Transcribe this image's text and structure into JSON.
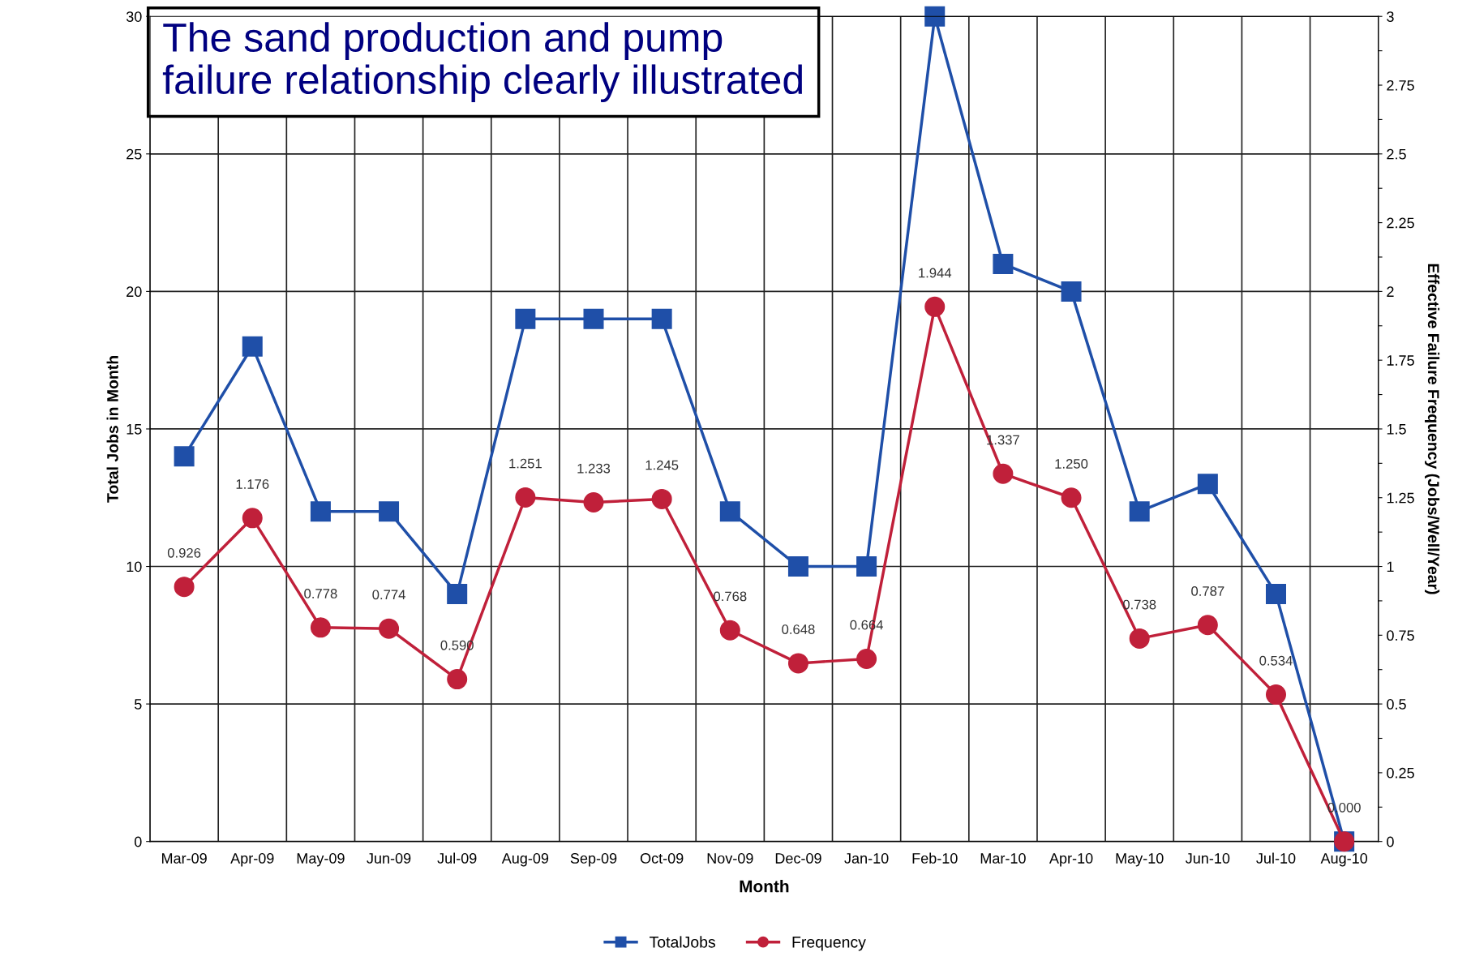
{
  "chart_data": {
    "type": "line",
    "title": "The sand production and pump\nfailure relationship clearly illustrated",
    "xlabel": "Month",
    "ylabel": "Total Jobs in Month",
    "y2label": "Effective Failure Frequency (Jobs/Well/Year)",
    "categories": [
      "Mar-09",
      "Apr-09",
      "May-09",
      "Jun-09",
      "Jul-09",
      "Aug-09",
      "Sep-09",
      "Oct-09",
      "Nov-09",
      "Dec-09",
      "Jan-10",
      "Feb-10",
      "Mar-10",
      "Apr-10",
      "May-10",
      "Jun-10",
      "Jul-10",
      "Aug-10"
    ],
    "series": [
      {
        "name": "TotalJobs",
        "color": "#1f4fa8",
        "marker": "square",
        "values": [
          14,
          18,
          12,
          12,
          9,
          19,
          19,
          19,
          12,
          10,
          10,
          30,
          21,
          20,
          12,
          13,
          9,
          0
        ]
      },
      {
        "name": "Frequency",
        "color": "#c0203a",
        "marker": "circle",
        "axis": "y2",
        "values": [
          0.926,
          1.176,
          0.778,
          0.774,
          0.59,
          1.251,
          1.233,
          1.245,
          0.768,
          0.648,
          0.664,
          1.944,
          1.337,
          1.25,
          0.738,
          0.787,
          0.534,
          0.0
        ],
        "value_labels": [
          "0.926",
          "1.176",
          "0.778",
          "0.774",
          "0.590",
          "1.251",
          "1.233",
          "1.245",
          "0.768",
          "0.648",
          "0.664",
          "1.944",
          "1.337",
          "1.250",
          "0.738",
          "0.787",
          "0.534",
          "0.000"
        ]
      }
    ],
    "ylim": [
      0,
      30
    ],
    "yticks": [
      0,
      5,
      10,
      15,
      20,
      25,
      30
    ],
    "y2lim": [
      0,
      3
    ],
    "y2ticks": [
      0,
      {
        "value": 0.125,
        "label": null
      },
      0.25,
      {
        "value": 0.375,
        "label": null
      },
      0.5,
      {
        "value": 0.625,
        "label": null
      },
      0.75,
      {
        "value": 0.875,
        "label": null
      },
      1,
      {
        "value": 1.125,
        "label": null
      },
      1.25,
      {
        "value": 1.375,
        "label": null
      },
      1.5,
      {
        "value": 1.625,
        "label": null
      },
      1.75,
      {
        "value": 1.875,
        "label": null
      },
      2,
      {
        "value": 2.125,
        "label": null
      },
      2.25,
      {
        "value": 2.375,
        "label": null
      },
      2.5,
      {
        "value": 2.625,
        "label": null
      },
      2.75,
      {
        "value": 2.875,
        "label": null
      },
      3
    ],
    "grid": true,
    "legend": "bottom",
    "line_style": "solid"
  }
}
